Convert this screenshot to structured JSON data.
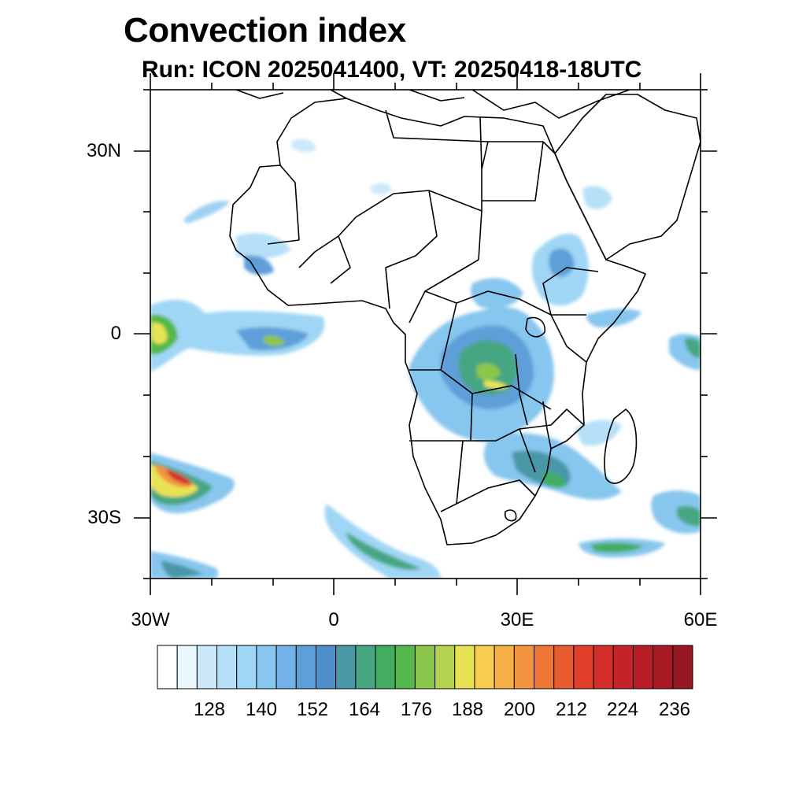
{
  "title": "Convection index",
  "subtitle": "Run: ICON 2025041400,  VT: 20250418-18UTC",
  "axes": {
    "lat_labels": [
      "30N",
      "0",
      "30S"
    ],
    "lon_labels": [
      "30W",
      "0",
      "30E",
      "60E"
    ]
  },
  "colorbar": {
    "labels": [
      "128",
      "140",
      "152",
      "164",
      "176",
      "188",
      "200",
      "212",
      "224",
      "236"
    ],
    "colors": [
      "#ffffff",
      "#eaf6fd",
      "#cce9f9",
      "#b6e0f7",
      "#9fd6f5",
      "#87c6ee",
      "#73b2e6",
      "#5e9fd9",
      "#4f8fcb",
      "#4a98a8",
      "#46a682",
      "#42ad60",
      "#54b84a",
      "#8cc64c",
      "#b5d350",
      "#e8e355",
      "#f8cd4f",
      "#f6af47",
      "#f39440",
      "#ee7737",
      "#e75c30",
      "#e0402b",
      "#d42e2b",
      "#c6222a",
      "#b81c27",
      "#a81924",
      "#961721"
    ]
  }
}
